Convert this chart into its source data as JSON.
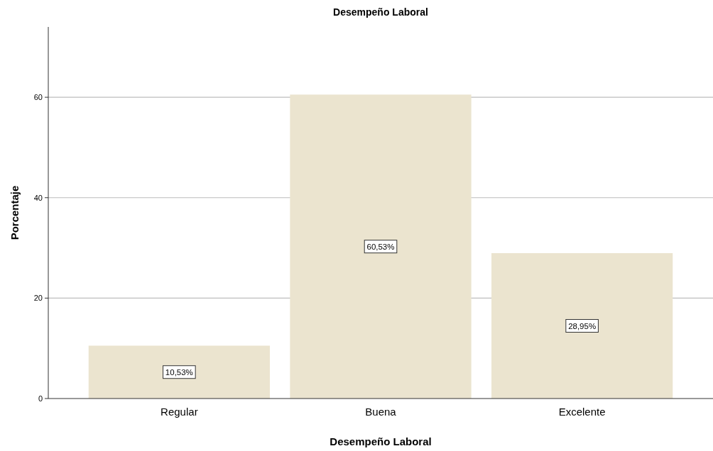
{
  "chart_data": {
    "type": "bar",
    "title": "Desempeño Laboral",
    "xlabel": "Desempeño Laboral",
    "ylabel": "Porcentaje",
    "categories": [
      "Regular",
      "Buena",
      "Excelente"
    ],
    "values": [
      10.53,
      60.53,
      28.95
    ],
    "value_labels": [
      "10,53%",
      "60,53%",
      "28,95%"
    ],
    "color": "#ebe4cf",
    "ylim": [
      0,
      74
    ],
    "yticks": [
      0,
      20,
      40,
      60
    ],
    "grid": "y"
  }
}
